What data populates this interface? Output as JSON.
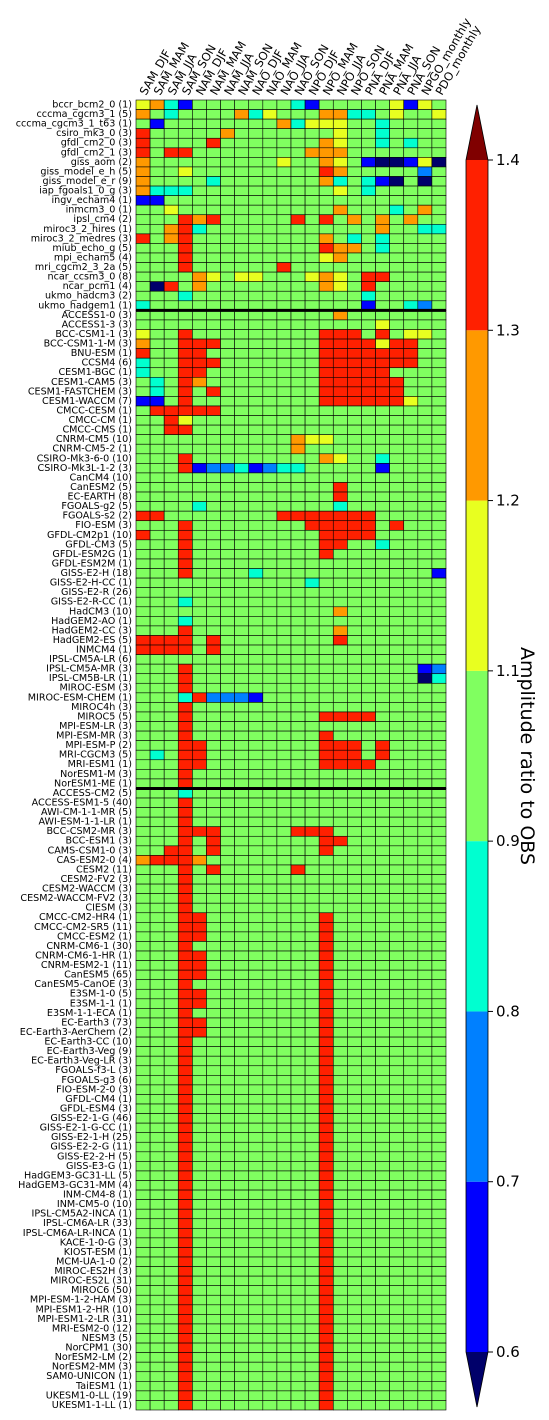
{
  "chart_data": {
    "type": "heatmap",
    "title": "",
    "columns": [
      "SAM_DJF",
      "SAM_MAM",
      "SAM_JJA",
      "SAM_SON",
      "NAM_DJF",
      "NAM_MAM",
      "NAM_JJA",
      "NAM_SON",
      "NAO_DJF",
      "NAO_MAM",
      "NAO_JJA",
      "NAO_SON",
      "NPO_DJF",
      "NPO_MAM",
      "NPO_JJA",
      "NPO_SON",
      "PNA_DJF",
      "PNA_MAM",
      "PNA_JJA",
      "PNA_SON",
      "NPGO_monthly",
      "PDO_monthly"
    ],
    "groups": [
      {
        "rows": [
          "bccr_bcm2_0 (1)",
          "cccma_cgcm3_1 (5)",
          "cccma_cgcm3_1_t63 (1)",
          "csiro_mk3_0 (3)",
          "gfdl_cm2_0 (3)",
          "gfdl_cm2_1 (3)",
          "giss_aom (2)",
          "giss_model_e_h (5)",
          "giss_model_e_r (9)",
          "iap_fgoals1_0_g (3)",
          "ingv_echam4 (1)",
          "inmcm3_0 (1)",
          "ipsl_cm4 (2)",
          "miroc3_2_hires (1)",
          "miroc3_2_medres (3)",
          "miub_echo_g (5)",
          "mpi_echam5 (4)",
          "mri_cgcm2_3_2a (5)",
          "ncar_ccsm3_0 (8)",
          "ncar_pcm1 (4)",
          "ukmo_hadcm3 (2)",
          "ukmo_hadgem1 (1)"
        ]
      },
      {
        "rows": [
          "ACCESS1-0 (3)",
          "ACCESS1-3 (3)",
          "BCC-CSM1-1 (3)",
          "BCC-CSM1-1-M (3)",
          "BNU-ESM (1)",
          "CCSM4 (6)",
          "CESM1-BGC (1)",
          "CESM1-CAM5 (3)",
          "CESM1-FASTCHEM (3)",
          "CESM1-WACCM (7)",
          "CMCC-CESM (1)",
          "CMCC-CM (1)",
          "CMCC-CMS (1)",
          "CNRM-CM5 (10)",
          "CNRM-CM5-2 (1)",
          "CSIRO-Mk3-6-0 (10)",
          "CSIRO-Mk3L-1-2 (3)",
          "CanCM4 (10)",
          "CanESM2 (5)",
          "EC-EARTH (8)",
          "FGOALS-g2 (5)",
          "FGOALS-s2 (2)",
          "FIO-ESM (3)",
          "GFDL-CM2p1 (10)",
          "GFDL-CM3 (5)",
          "GFDL-ESM2G (1)",
          "GFDL-ESM2M (1)",
          "GISS-E2-H (18)",
          "GISS-E2-H-CC (1)",
          "GISS-E2-R (26)",
          "GISS-E2-R-CC (1)",
          "HadCM3 (10)",
          "HadGEM2-AO (1)",
          "HadGEM2-CC (3)",
          "HadGEM2-ES (5)",
          "INMCM4 (1)",
          "IPSL-CM5A-LR (6)",
          "IPSL-CM5A-MR (3)",
          "IPSL-CM5B-LR (1)",
          "MIROC-ESM (3)",
          "MIROC-ESM-CHEM (1)",
          "MIROC4h (3)",
          "MIROC5 (5)",
          "MPI-ESM-LR (3)",
          "MPI-ESM-MR (3)",
          "MPI-ESM-P (2)",
          "MRI-CGCM3 (5)",
          "MRI-ESM1 (1)",
          "NorESM1-M (3)",
          "NorESM1-ME (1)"
        ]
      },
      {
        "rows": [
          "ACCESS-CM2 (5)",
          "ACCESS-ESM1-5 (40)",
          "AWI-CM-1-1-MR (5)",
          "AWI-ESM-1-1-LR (1)",
          "BCC-CSM2-MR (3)",
          "BCC-ESM1 (3)",
          "CAMS-CSM1-0 (3)",
          "CAS-ESM2-0 (4)",
          "CESM2 (11)",
          "CESM2-FV2 (3)",
          "CESM2-WACCM (3)",
          "CESM2-WACCM-FV2 (3)",
          "CIESM (3)",
          "CMCC-CM2-HR4 (1)",
          "CMCC-CM2-SR5 (11)",
          "CMCC-ESM2 (1)",
          "CNRM-CM6-1 (30)",
          "CNRM-CM6-1-HR (1)",
          "CNRM-ESM2-1 (11)",
          "CanESM5 (65)",
          "CanESM5-CanOE (3)",
          "E3SM-1-0 (5)",
          "E3SM-1-1 (1)",
          "E3SM-1-1-ECA (1)",
          "EC-Earth3 (73)",
          "EC-Earth3-AerChem (2)",
          "EC-Earth3-CC (10)",
          "EC-Earth3-Veg (9)",
          "EC-Earth3-Veg-LR (3)",
          "FGOALS-f3-L (3)",
          "FGOALS-g3 (6)",
          "FIO-ESM-2-0 (3)",
          "GFDL-CM4 (1)",
          "GFDL-ESM4 (3)",
          "GISS-E2-1-G (46)",
          "GISS-E2-1-G-CC (1)",
          "GISS-E2-1-H (25)",
          "GISS-E2-2-G (11)",
          "GISS-E2-2-H (5)",
          "GISS-E3-G (1)",
          "HadGEM3-GC31-LL (5)",
          "HadGEM3-GC31-MM (4)",
          "INM-CM4-8 (1)",
          "INM-CM5-0 (10)",
          "IPSL-CM5A2-INCA (1)",
          "IPSL-CM6A-LR (33)",
          "IPSL-CM6A-LR-INCA (1)",
          "KACE-1-0-G (3)",
          "KIOST-ESM (1)",
          "MCM-UA-1-0 (2)",
          "MIROC-ES2H (3)",
          "MIROC-ES2L (31)",
          "MIROC6 (50)",
          "MPI-ESM-1-2-HAM (3)",
          "MPI-ESM1-2-HR (10)",
          "MPI-ESM1-2-LR (31)",
          "MRI-ESM2-0 (12)",
          "NESM3 (5)",
          "NorCPM1 (30)",
          "NorESM2-LM (2)",
          "NorESM2-MM (3)",
          "SAM0-UNICON (1)",
          "TaiESM1 (1)",
          "UKESM1-0-LL (19)",
          "UKESM1-1-LL (1)"
        ]
      }
    ],
    "color_levels": [
      0.6,
      0.7,
      0.8,
      0.9,
      1.1,
      1.2,
      1.3,
      1.4
    ],
    "level_colors": [
      "#0000ff",
      "#0080ff",
      "#00ffd0",
      "#80ff60",
      "#e8ff20",
      "#ff9900",
      "#ff2000"
    ],
    "extend_low_color": "#00006a",
    "extend_high_color": "#800000",
    "missing_color": "#ffffff",
    "colorbar_ticks": [
      "0.6",
      "0.7",
      "0.8",
      "0.9",
      "1.1",
      "1.2",
      "1.3",
      "1.4"
    ],
    "colorbar_label": "Amplitude ratio to OBS",
    "cell_codes_legend": "characters 0-8 index into [extend_low, level_colors..., extend_high]; '-' = no data",
    "cells": [
      "5631444444431444445154",
      "6434444635444663345445",
      "4144444444635554434444",
      "7444446444444454434444",
      "7444474444444654434344",
      "7477444444446664444444",
      "6444444444544654100150",
      "6445444444444764444424",
      "6444434444444634310404",
      "6333444444444454344444",
      "1144444444444444444444",
      "4454444444444464443464",
      "4447674444474746464644",
      "4467344444444444464433",
      "7467444444444643434444",
      "4447444444444766434444",
      "4447444444444564444444",
      "4447444444744444444444",
      "4444654554445654774444",
      "4074644444444654744444",
      "4443444444444444344444",
      "3444444444444444144324",
      "4444444444444464444444",
      "4444444444444444454444",
      "5447444444444777474554",
      "6447774444444777757744",
      "7447744444444777777744",
      "3447774444444777777744",
      "3447744444444777774444",
      "4347644444444777777444",
      "4347474444444777777444",
      "1147444444444777777544",
      "4777774444444444444444",
      "4475444444444444444444",
      "4477444444444444444444",
      "4444444444465544444444",
      "4444444444464444444444",
      "4447444444444654434444",
      "4447122312334444414444",
      "4444444444444444444444",
      "4444444444444474444444",
      "4444444444444474444444",
      "4444344444444434444444",
      "7744444444777777744444",
      "4447444444447777747444",
      "7447444444444777744444",
      "4447444444444774434444",
      "4447444444444744444444",
      "4447444444444444444444",
      "4447444434444444444441",
      "4444444444443444444444",
      "4444444444444444444444",
      "4443444444444444444444",
      "4444444444444464444444",
      "4443444444444444444444",
      "4447444444444464444444",
      "7777474444444474444444",
      "7777474444444444444444",
      "4444444444444444444444",
      "4447444444444444444412",
      "4447444444444444444403",
      "4447444444444444444444",
      "4443722214444444444444",
      "4447444444444444444444",
      "4447444444444777744444",
      "4447444444444444444444",
      "4447444444444744444444",
      "4447744444444777474444",
      "4347744444444777474444",
      "4447744444444777744444",
      "4447444444444444444444",
      "4447444444444444444444",
      "4443444444444444444444",
      "4447444444444444444444",
      "4447444444444444444444",
      "4447444444444444444444",
      "4447774444477744444444",
      "4447474444444774444444",
      "4477474444444744444444",
      "6777644444444444444444",
      "4447474444474444444444",
      "4447444444444444444444",
      "4447444444444444444444",
      "4447444444444444444444",
      "4447444444444444444444",
      "4447744444444744444444",
      "4447744444444744444444",
      "4447744444444744444444",
      "4447444444444744444444",
      "4447744444444744444444",
      "4447744444444744444444",
      "4447744444444744444444",
      "4447444444444744444444",
      "4447744444444744444444",
      "4447744444444744444444",
      "4447444444444744444444",
      "4447744444444744444444",
      "4447744444444744444444",
      "4447444444444744444444",
      "4447444444444744444444",
      "4447444444444744444444",
      "4447444444444744444444",
      "4447444444444744444444",
      "4447444444444744444444",
      "4447444444444744444444",
      "4447444444444744444444",
      "4447444444444744444444",
      "4447444444444744444444",
      "4447444444444744444444",
      "4447444444444744444444",
      "4447444444444744444444",
      "4447444444444744444444",
      "4447444444444744444444",
      "4447444444444744444444",
      "4447444444444744444444",
      "4447444444444744444444",
      "4447444444444744444444",
      "4447444444444744444444",
      "4447444444444744444444",
      "4447444444444744444444",
      "4447444444444744444444",
      "4447444444444744444444",
      "4447444444444744444444",
      "4447444444444744444444",
      "4447444444444744444444",
      "4447444444444744444444",
      "4447444444444744444444",
      "4447444444444744444444",
      "4447444444444744444444",
      "4447444444444744444444",
      "4447444444444744444444",
      "4447444444444744444444",
      "4447444444444744444444",
      "4447444444444744444444",
      "4447444444444744444444",
      "4447444444444744444444",
      "4447444444444744444444"
    ]
  }
}
